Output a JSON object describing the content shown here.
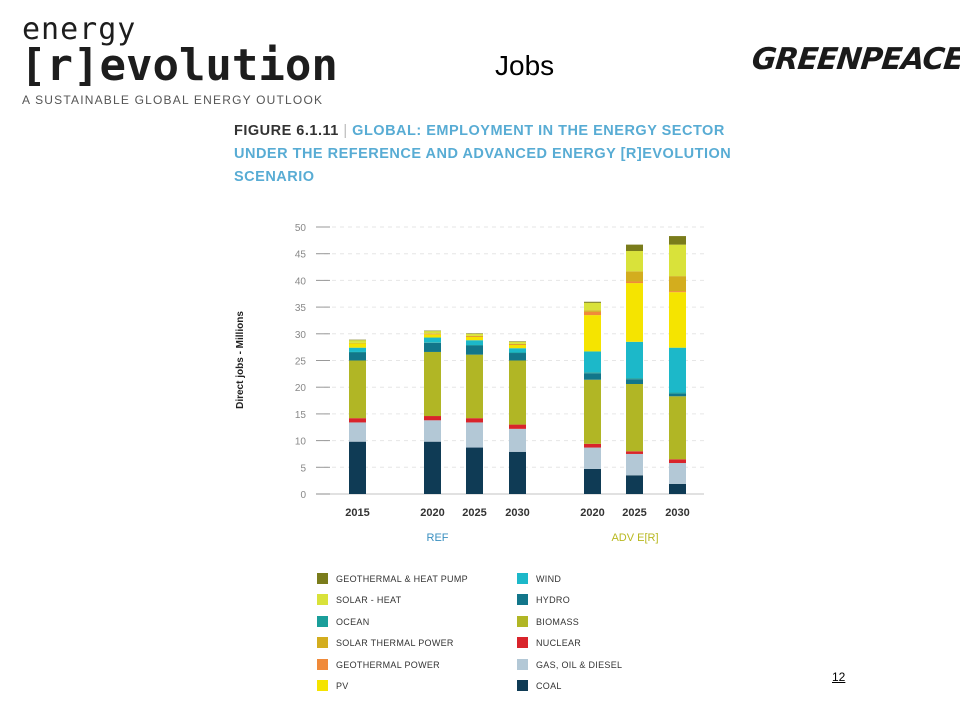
{
  "header": {
    "logo_line1": "energy",
    "logo_line2": "[r]evolution",
    "logo_tagline": "A SUSTAINABLE GLOBAL ENERGY OUTLOOK",
    "slide_title": "Jobs",
    "brand_logo": "GREENPEACE"
  },
  "figure": {
    "number": "FIGURE 6.1.11",
    "separator": "|",
    "title": "GLOBAL: EMPLOYMENT IN THE ENERGY SECTOR UNDER THE REFERENCE AND ADVANCED ENERGY [R]EVOLUTION SCENARIO"
  },
  "footer": {
    "page_number": "12"
  },
  "chart_data": {
    "type": "bar",
    "stacked": true,
    "ylabel": "Direct jobs - Millions",
    "ylim": [
      0,
      50
    ],
    "yticks": [
      0,
      5,
      10,
      15,
      20,
      25,
      30,
      35,
      40,
      45,
      50
    ],
    "categories": [
      "2015",
      "2020",
      "2025",
      "2030",
      "2020",
      "2025",
      "2030"
    ],
    "groups": [
      {
        "label": "REF",
        "categories": [
          0,
          1,
          2,
          3
        ]
      },
      {
        "label": "ADV E[R]",
        "categories": [
          4,
          5,
          6
        ]
      }
    ],
    "series": [
      {
        "name": "COAL",
        "color": "#0f3b55",
        "values": [
          9.8,
          9.8,
          8.7,
          7.9,
          4.7,
          3.5,
          1.9
        ]
      },
      {
        "name": "GAS, OIL & DIESEL",
        "color": "#b3c8d6",
        "values": [
          3.6,
          4.0,
          4.7,
          4.3,
          4.0,
          4.0,
          3.9
        ]
      },
      {
        "name": "NUCLEAR",
        "color": "#d9242b",
        "values": [
          0.8,
          0.8,
          0.8,
          0.8,
          0.7,
          0.5,
          0.7
        ]
      },
      {
        "name": "BIOMASS",
        "color": "#b1b625",
        "values": [
          10.8,
          12.0,
          11.9,
          12.0,
          12.0,
          12.6,
          11.8
        ]
      },
      {
        "name": "HYDRO",
        "color": "#12768a",
        "values": [
          1.5,
          1.7,
          1.7,
          1.4,
          1.2,
          0.9,
          0.5
        ]
      },
      {
        "name": "OCEAN",
        "color": "#1a9e9a",
        "values": [
          0.1,
          0.1,
          0.1,
          0.1,
          0.2,
          0.2,
          0.2
        ]
      },
      {
        "name": "WIND",
        "color": "#1cb8c9",
        "values": [
          0.8,
          0.9,
          0.9,
          0.8,
          3.9,
          6.8,
          8.4
        ]
      },
      {
        "name": "PV",
        "color": "#f5e400",
        "values": [
          0.8,
          0.6,
          0.6,
          0.6,
          6.8,
          11.0,
          10.4
        ]
      },
      {
        "name": "GEOTHERMAL POWER",
        "color": "#f08a3a",
        "values": [
          0.0,
          0.1,
          0.1,
          0.1,
          0.6,
          0.3,
          0.2
        ]
      },
      {
        "name": "SOLAR THERMAL POWER",
        "color": "#d3ad1e",
        "values": [
          0.1,
          0.1,
          0.1,
          0.1,
          0.3,
          1.9,
          2.8
        ]
      },
      {
        "name": "SOLAR - HEAT",
        "color": "#d9e23a",
        "values": [
          0.5,
          0.4,
          0.4,
          0.4,
          1.4,
          3.8,
          5.9
        ]
      },
      {
        "name": "GEOTHERMAL & HEAT PUMP",
        "color": "#7a7c1b",
        "values": [
          0.1,
          0.1,
          0.1,
          0.1,
          0.2,
          1.2,
          1.6
        ]
      }
    ],
    "legend": {
      "left": [
        "GEOTHERMAL & HEAT PUMP",
        "SOLAR - HEAT",
        "OCEAN",
        "SOLAR THERMAL POWER",
        "GEOTHERMAL POWER",
        "PV"
      ],
      "right": [
        "WIND",
        "HYDRO",
        "BIOMASS",
        "NUCLEAR",
        "GAS, OIL & DIESEL",
        "COAL"
      ]
    }
  }
}
